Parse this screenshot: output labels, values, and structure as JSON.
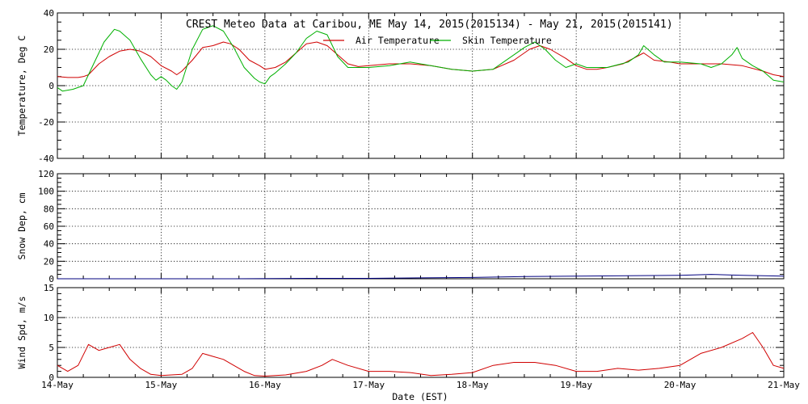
{
  "title": "CREST Meteo Data at Caribou, ME   May 14, 2015(2015134) - May 21, 2015(2015141)",
  "xlabel": "Date (EST)",
  "x_tick_labels": [
    "14-May",
    "15-May",
    "16-May",
    "17-May",
    "18-May",
    "19-May",
    "20-May",
    "21-May"
  ],
  "chart_data": [
    {
      "type": "line",
      "ylabel": "Temperature, Deg C",
      "ylim": [
        -40,
        40
      ],
      "yticks": [
        -40,
        -20,
        0,
        20,
        40
      ],
      "x_unit": "days since 14-May 00:00 EST",
      "xlim": [
        0,
        7
      ],
      "grid": true,
      "legend_position": "top-center",
      "series": [
        {
          "name": "Air Temperature",
          "color": "#d00000",
          "points": [
            [
              0,
              5
            ],
            [
              0.1,
              4.5
            ],
            [
              0.2,
              4.5
            ],
            [
              0.25,
              5
            ],
            [
              0.3,
              6
            ],
            [
              0.4,
              12
            ],
            [
              0.5,
              16
            ],
            [
              0.6,
              19
            ],
            [
              0.7,
              20
            ],
            [
              0.8,
              19
            ],
            [
              0.9,
              16
            ],
            [
              1.0,
              11
            ],
            [
              1.1,
              8
            ],
            [
              1.15,
              6
            ],
            [
              1.2,
              8
            ],
            [
              1.3,
              14
            ],
            [
              1.4,
              21
            ],
            [
              1.5,
              22
            ],
            [
              1.6,
              24
            ],
            [
              1.67,
              23
            ],
            [
              1.75,
              20
            ],
            [
              1.85,
              14
            ],
            [
              1.95,
              11
            ],
            [
              2.0,
              9
            ],
            [
              2.1,
              10
            ],
            [
              2.2,
              13
            ],
            [
              2.3,
              18
            ],
            [
              2.4,
              23
            ],
            [
              2.5,
              24
            ],
            [
              2.6,
              22
            ],
            [
              2.7,
              17
            ],
            [
              2.8,
              12
            ],
            [
              2.9,
              10.5
            ],
            [
              3.0,
              11
            ],
            [
              3.2,
              12
            ],
            [
              3.4,
              12
            ],
            [
              3.6,
              11
            ],
            [
              3.8,
              9
            ],
            [
              4.0,
              8
            ],
            [
              4.2,
              9
            ],
            [
              4.4,
              14
            ],
            [
              4.55,
              20
            ],
            [
              4.65,
              22
            ],
            [
              4.75,
              20
            ],
            [
              4.9,
              15
            ],
            [
              5.0,
              11
            ],
            [
              5.1,
              9
            ],
            [
              5.2,
              9
            ],
            [
              5.3,
              10
            ],
            [
              5.45,
              12
            ],
            [
              5.55,
              15
            ],
            [
              5.65,
              18
            ],
            [
              5.75,
              14
            ],
            [
              5.9,
              13
            ],
            [
              6.0,
              12
            ],
            [
              6.2,
              12
            ],
            [
              6.4,
              12
            ],
            [
              6.6,
              11
            ],
            [
              6.8,
              8
            ],
            [
              6.9,
              6
            ],
            [
              7.0,
              5
            ]
          ]
        },
        {
          "name": "Skin Temperature",
          "color": "#00b000",
          "points": [
            [
              0,
              -1
            ],
            [
              0.05,
              -3
            ],
            [
              0.15,
              -2
            ],
            [
              0.25,
              0
            ],
            [
              0.35,
              12
            ],
            [
              0.45,
              24
            ],
            [
              0.55,
              31
            ],
            [
              0.6,
              30
            ],
            [
              0.7,
              25
            ],
            [
              0.8,
              15
            ],
            [
              0.9,
              6
            ],
            [
              0.95,
              3
            ],
            [
              1.0,
              5
            ],
            [
              1.05,
              3
            ],
            [
              1.1,
              0
            ],
            [
              1.15,
              -2
            ],
            [
              1.2,
              2
            ],
            [
              1.3,
              20
            ],
            [
              1.4,
              31
            ],
            [
              1.5,
              33
            ],
            [
              1.6,
              30
            ],
            [
              1.7,
              21
            ],
            [
              1.8,
              10
            ],
            [
              1.9,
              4
            ],
            [
              1.95,
              2
            ],
            [
              2.0,
              1
            ],
            [
              2.05,
              5
            ],
            [
              2.1,
              7
            ],
            [
              2.2,
              12
            ],
            [
              2.3,
              18
            ],
            [
              2.4,
              26
            ],
            [
              2.5,
              30
            ],
            [
              2.6,
              28
            ],
            [
              2.7,
              16
            ],
            [
              2.8,
              10
            ],
            [
              3.0,
              10
            ],
            [
              3.2,
              11
            ],
            [
              3.4,
              13
            ],
            [
              3.6,
              11
            ],
            [
              3.8,
              9
            ],
            [
              4.0,
              8
            ],
            [
              4.2,
              9
            ],
            [
              4.4,
              17
            ],
            [
              4.5,
              21
            ],
            [
              4.6,
              24
            ],
            [
              4.7,
              20
            ],
            [
              4.8,
              14
            ],
            [
              4.9,
              10
            ],
            [
              5.0,
              12
            ],
            [
              5.1,
              10
            ],
            [
              5.3,
              10
            ],
            [
              5.5,
              13
            ],
            [
              5.6,
              17
            ],
            [
              5.65,
              22
            ],
            [
              5.75,
              17
            ],
            [
              5.85,
              13
            ],
            [
              6.0,
              13
            ],
            [
              6.2,
              12
            ],
            [
              6.3,
              10
            ],
            [
              6.4,
              12
            ],
            [
              6.5,
              17
            ],
            [
              6.55,
              21
            ],
            [
              6.6,
              15
            ],
            [
              6.7,
              11
            ],
            [
              6.8,
              8
            ],
            [
              6.9,
              3
            ],
            [
              7.0,
              2
            ]
          ]
        }
      ]
    },
    {
      "type": "line",
      "ylabel": "Snow Dep, cm",
      "ylim": [
        0,
        120
      ],
      "yticks": [
        0,
        20,
        40,
        60,
        80,
        100,
        120
      ],
      "x_unit": "days since 14-May 00:00 EST",
      "xlim": [
        0,
        7
      ],
      "grid": true,
      "series": [
        {
          "name": "Snow Depth",
          "color": "#00007f",
          "points": [
            [
              0,
              0
            ],
            [
              0.8,
              0
            ],
            [
              1.7,
              0
            ],
            [
              2.5,
              0.5
            ],
            [
              3.0,
              0.5
            ],
            [
              3.5,
              1
            ],
            [
              4.0,
              1.5
            ],
            [
              4.5,
              2.5
            ],
            [
              5.0,
              3
            ],
            [
              5.5,
              3.5
            ],
            [
              6.0,
              4
            ],
            [
              6.3,
              5
            ],
            [
              6.6,
              4
            ],
            [
              7.0,
              3
            ]
          ]
        }
      ]
    },
    {
      "type": "line",
      "ylabel": "Wind Spd, m/s",
      "ylim": [
        0,
        15
      ],
      "yticks": [
        0,
        5,
        10,
        15
      ],
      "x_unit": "days since 14-May 00:00 EST",
      "xlim": [
        0,
        7
      ],
      "grid": true,
      "series": [
        {
          "name": "Wind Speed",
          "color": "#d00000",
          "points": [
            [
              0,
              2
            ],
            [
              0.1,
              1
            ],
            [
              0.2,
              2
            ],
            [
              0.3,
              5.5
            ],
            [
              0.4,
              4.5
            ],
            [
              0.5,
              5
            ],
            [
              0.6,
              5.5
            ],
            [
              0.7,
              3
            ],
            [
              0.8,
              1.5
            ],
            [
              0.9,
              0.5
            ],
            [
              1.0,
              0.3
            ],
            [
              1.2,
              0.5
            ],
            [
              1.3,
              1.5
            ],
            [
              1.4,
              4
            ],
            [
              1.5,
              3.5
            ],
            [
              1.6,
              3
            ],
            [
              1.7,
              2
            ],
            [
              1.8,
              1
            ],
            [
              1.9,
              0.3
            ],
            [
              2.0,
              0.2
            ],
            [
              2.2,
              0.4
            ],
            [
              2.4,
              1
            ],
            [
              2.55,
              2
            ],
            [
              2.65,
              3
            ],
            [
              2.8,
              2
            ],
            [
              3.0,
              1
            ],
            [
              3.2,
              1
            ],
            [
              3.4,
              0.8
            ],
            [
              3.6,
              0.3
            ],
            [
              3.8,
              0.5
            ],
            [
              4.0,
              0.8
            ],
            [
              4.2,
              2
            ],
            [
              4.4,
              2.5
            ],
            [
              4.6,
              2.5
            ],
            [
              4.8,
              2
            ],
            [
              5.0,
              1
            ],
            [
              5.2,
              1
            ],
            [
              5.4,
              1.5
            ],
            [
              5.6,
              1.2
            ],
            [
              5.8,
              1.5
            ],
            [
              6.0,
              2
            ],
            [
              6.2,
              4
            ],
            [
              6.4,
              5
            ],
            [
              6.6,
              6.5
            ],
            [
              6.7,
              7.5
            ],
            [
              6.8,
              5
            ],
            [
              6.9,
              2
            ],
            [
              7.0,
              1.5
            ]
          ]
        }
      ]
    }
  ]
}
